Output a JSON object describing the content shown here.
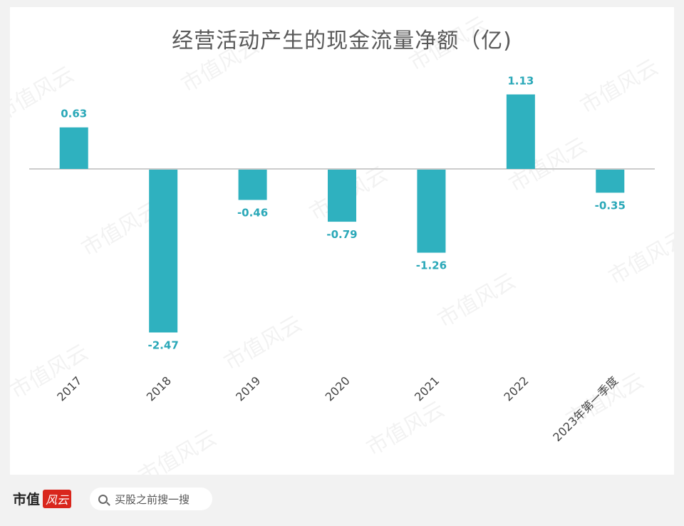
{
  "chart_data": {
    "type": "bar",
    "title": "经营活动产生的现金流量净额（亿)",
    "categories": [
      "2017",
      "2018",
      "2019",
      "2020",
      "2021",
      "2022",
      "2023年第一季度"
    ],
    "values": [
      0.63,
      -2.47,
      -0.46,
      -0.79,
      -1.26,
      1.13,
      -0.35
    ],
    "value_labels": [
      "0.63",
      "-2.47",
      "-0.46",
      "-0.79",
      "-1.26",
      "1.13",
      "-0.35"
    ],
    "xlabel": "",
    "ylabel": "",
    "ylim": [
      -2.6,
      1.3
    ],
    "grid": false,
    "legend": "none",
    "bar_color": "#2fb1bf",
    "label_color": "#2aa8b8",
    "axis_color": "#cccccc"
  },
  "watermark": "市值风云",
  "footer": {
    "brand_text": "市值",
    "brand_seal_text": "风云",
    "search_icon": "search-icon",
    "search_text": "买股之前搜一搜"
  }
}
